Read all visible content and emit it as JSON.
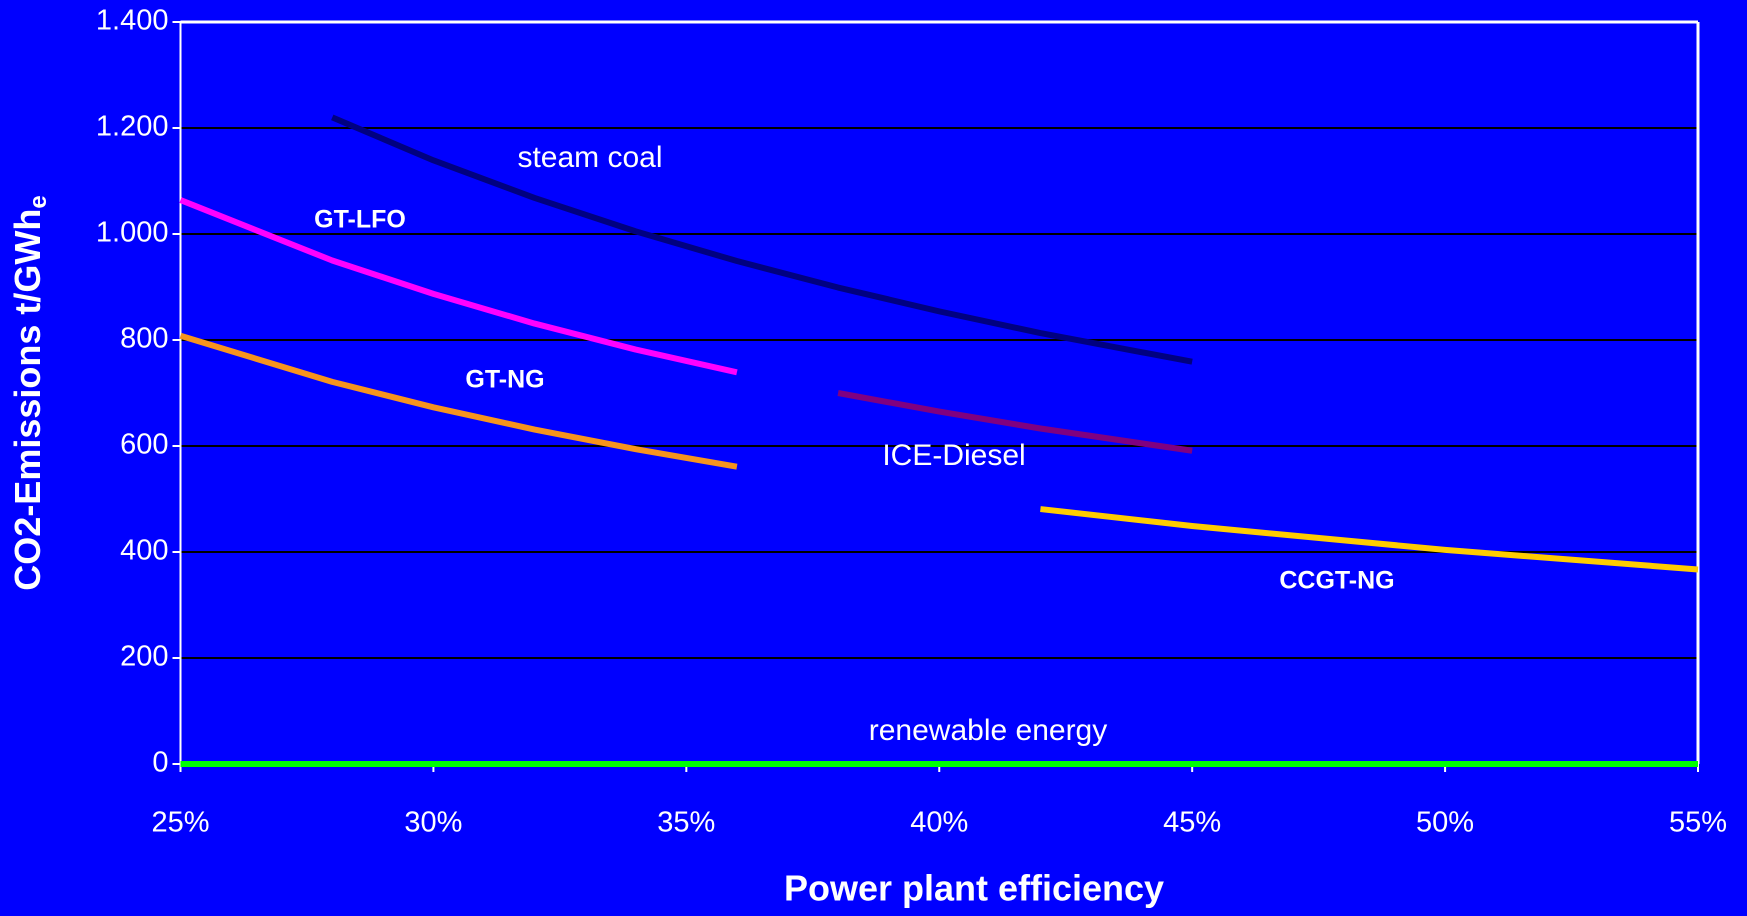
{
  "chart_data": {
    "type": "line",
    "x_label": "Power plant efficiency",
    "y_label": "CO2-Emissions  t/GWh",
    "y_label_subscript": "e",
    "xlim": [
      25,
      55
    ],
    "xticks": [
      {
        "value": 25,
        "label": "25%"
      },
      {
        "value": 30,
        "label": "30%"
      },
      {
        "value": 35,
        "label": "35%"
      },
      {
        "value": 40,
        "label": "40%"
      },
      {
        "value": 45,
        "label": "45%"
      },
      {
        "value": 50,
        "label": "50%"
      },
      {
        "value": 55,
        "label": "55%"
      }
    ],
    "ylim": [
      0,
      1400
    ],
    "yticks": [
      0,
      200,
      400,
      600,
      800,
      {
        "value": 1000,
        "label": "1.000"
      },
      {
        "value": 1200,
        "label": "1.200"
      },
      {
        "value": 1400,
        "label": "1.400"
      }
    ],
    "grid": true,
    "series": [
      {
        "name": "steam coal",
        "color": "#000080",
        "x": [
          28,
          30,
          32,
          34,
          36,
          38,
          40,
          42,
          45
        ],
        "values": [
          1220,
          1139,
          1068,
          1005,
          949,
          899,
          854,
          813,
          759
        ]
      },
      {
        "name": "GT-LFO",
        "color": "#ff00ff",
        "x": [
          25,
          28,
          30,
          32,
          34,
          36
        ],
        "values": [
          1064,
          950,
          887,
          831,
          782,
          739
        ]
      },
      {
        "name": "GT-NG",
        "color": "#f7941d",
        "x": [
          25,
          28,
          30,
          32,
          34,
          36
        ],
        "values": [
          808,
          721,
          673,
          631,
          594,
          561
        ]
      },
      {
        "name": "ICE-Diesel",
        "color": "#800080",
        "x": [
          38,
          40,
          42,
          45
        ],
        "values": [
          700,
          665,
          633,
          591
        ]
      },
      {
        "name": "CCGT-NG",
        "color": "#ffcc00",
        "x": [
          42,
          45,
          50,
          55
        ],
        "values": [
          481,
          449,
          404,
          367
        ]
      },
      {
        "name": "renewable energy",
        "color": "#00ff00",
        "x": [
          25,
          55
        ],
        "values": [
          0,
          0
        ]
      }
    ]
  }
}
